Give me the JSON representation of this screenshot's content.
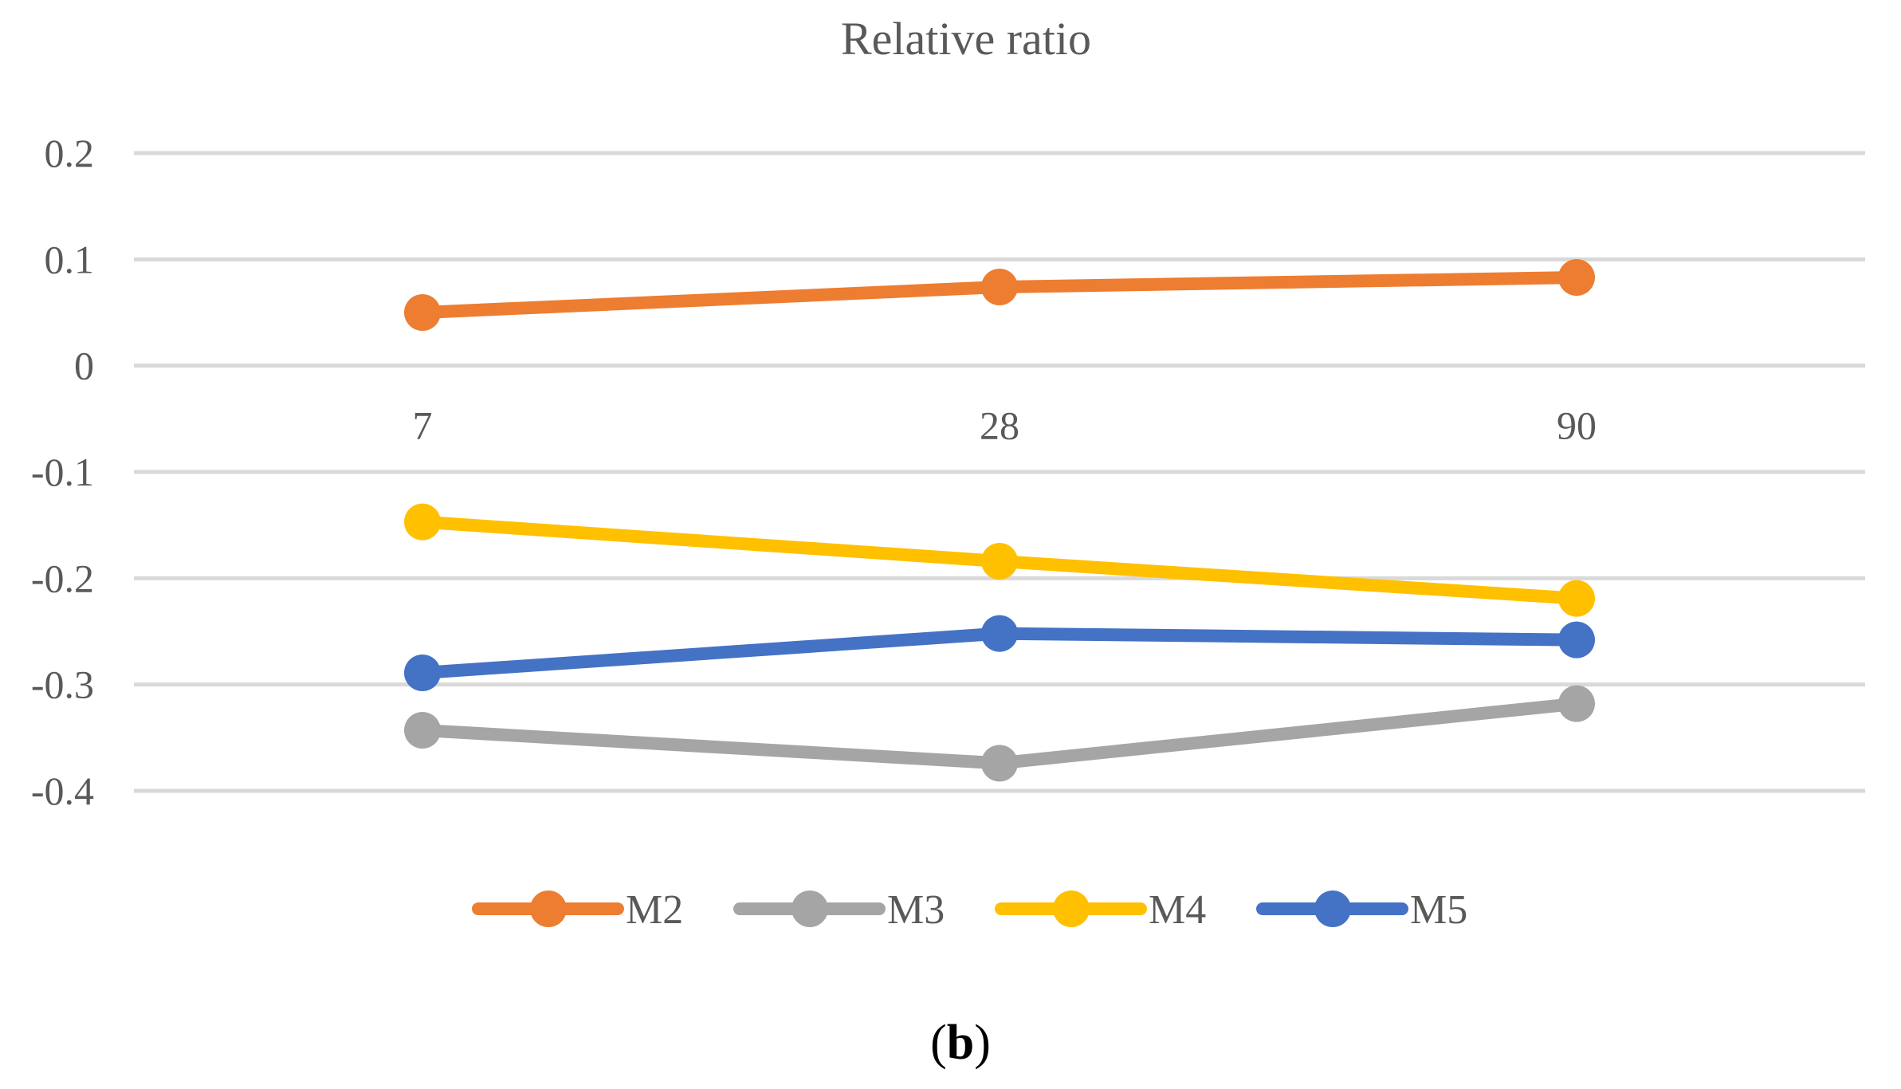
{
  "chart_data": {
    "type": "line",
    "title": "Relative ratio",
    "categories": [
      "7",
      "28",
      "90"
    ],
    "yticks": [
      "0.2",
      "0.1",
      "0",
      "-0.1",
      "-0.2",
      "-0.3",
      "-0.4"
    ],
    "ylim": [
      -0.4,
      0.2
    ],
    "grid": true,
    "legend_position": "bottom",
    "series": [
      {
        "name": "M2",
        "color": "#ED7D31",
        "values": [
          0.05,
          0.074,
          0.083
        ]
      },
      {
        "name": "M3",
        "color": "#A5A5A5",
        "values": [
          -0.343,
          -0.374,
          -0.318
        ]
      },
      {
        "name": "M4",
        "color": "#FFC000",
        "values": [
          -0.147,
          -0.184,
          -0.219
        ]
      },
      {
        "name": "M5",
        "color": "#4472C4",
        "values": [
          -0.289,
          -0.252,
          -0.258
        ]
      }
    ]
  },
  "panel_label": {
    "open": "(",
    "letter": "b",
    "close": ")"
  }
}
